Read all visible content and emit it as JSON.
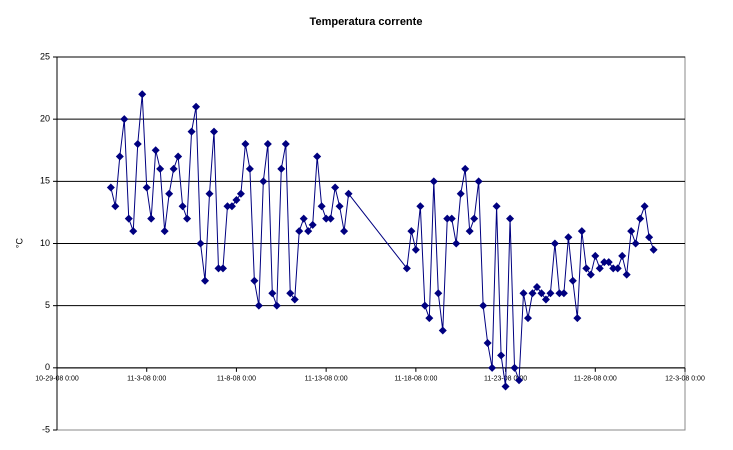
{
  "chart_data": {
    "type": "line",
    "title": "Temperatura corrente",
    "y_label": "°C",
    "color": "#000080",
    "marker": "diamond",
    "grid": true,
    "x": [
      "11-1-08 0:00",
      "11-1-08 6:00",
      "11-1-08 12:00",
      "11-1-08 18:00",
      "11-2-08 0:00",
      "11-2-08 6:00",
      "11-2-08 12:00",
      "11-2-08 18:00",
      "11-3-08 0:00",
      "11-3-08 6:00",
      "11-3-08 12:00",
      "11-3-08 18:00",
      "11-4-08 0:00",
      "11-4-08 6:00",
      "11-4-08 12:00",
      "11-4-08 18:00",
      "11-5-08 0:00",
      "11-5-08 6:00",
      "11-5-08 12:00",
      "11-5-08 18:00",
      "11-6-08 0:00",
      "11-6-08 6:00",
      "11-6-08 12:00",
      "11-6-08 18:00",
      "11-7-08 0:00",
      "11-7-08 6:00",
      "11-7-08 12:00",
      "11-7-08 18:00",
      "11-8-08 0:00",
      "11-8-08 6:00",
      "11-8-08 12:00",
      "11-8-08 18:00",
      "11-9-08 0:00",
      "11-9-08 6:00",
      "11-9-08 12:00",
      "11-9-08 18:00",
      "11-10-08 0:00",
      "11-10-08 6:00",
      "11-10-08 12:00",
      "11-10-08 18:00",
      "11-11-08 0:00",
      "11-11-08 6:00",
      "11-11-08 12:00",
      "11-11-08 18:00",
      "11-12-08 0:00",
      "11-12-08 6:00",
      "11-12-08 12:00",
      "11-12-08 18:00",
      "11-13-08 0:00",
      "11-13-08 6:00",
      "11-13-08 12:00",
      "11-13-08 18:00",
      "11-14-08 0:00",
      "11-14-08 6:00",
      "11-17-08 12:00",
      "11-17-08 18:00",
      "11-18-08 0:00",
      "11-18-08 6:00",
      "11-18-08 12:00",
      "11-18-08 18:00",
      "11-19-08 0:00",
      "11-19-08 6:00",
      "11-19-08 12:00",
      "11-19-08 18:00",
      "11-20-08 0:00",
      "11-20-08 6:00",
      "11-20-08 12:00",
      "11-20-08 18:00",
      "11-21-08 0:00",
      "11-21-08 6:00",
      "11-21-08 12:00",
      "11-21-08 18:00",
      "11-22-08 0:00",
      "11-22-08 6:00",
      "11-22-08 12:00",
      "11-22-08 18:00",
      "11-23-08 0:00",
      "11-23-08 6:00",
      "11-23-08 12:00",
      "11-23-08 18:00",
      "11-24-08 0:00",
      "11-24-08 6:00",
      "11-24-08 12:00",
      "11-24-08 18:00",
      "11-25-08 0:00",
      "11-25-08 6:00",
      "11-25-08 12:00",
      "11-25-08 18:00",
      "11-26-08 0:00",
      "11-26-08 6:00",
      "11-26-08 12:00",
      "11-26-08 18:00",
      "11-27-08 0:00",
      "11-27-08 6:00",
      "11-27-08 12:00",
      "11-27-08 18:00",
      "11-28-08 0:00",
      "11-28-08 6:00",
      "11-28-08 12:00",
      "11-28-08 18:00",
      "11-29-08 0:00",
      "11-29-08 6:00",
      "11-29-08 12:00",
      "11-29-08 18:00",
      "11-30-08 0:00",
      "11-30-08 6:00",
      "11-30-08 12:00",
      "11-30-08 18:00",
      "12-1-08 0:00",
      "12-1-08 6:00"
    ],
    "values": [
      14.5,
      13,
      17,
      20,
      12,
      11,
      18,
      22,
      14.5,
      12,
      17.5,
      16,
      11,
      14,
      16,
      17,
      13,
      12,
      19,
      21,
      10,
      7,
      14,
      19,
      8,
      8,
      13,
      13,
      13.5,
      14,
      18,
      16,
      7,
      5,
      15,
      18,
      6,
      5,
      16,
      18,
      6,
      5.5,
      11,
      12,
      11,
      11.5,
      17,
      13,
      12,
      12,
      14.5,
      13,
      11,
      14,
      8,
      11,
      9.5,
      13,
      5,
      4,
      15,
      6,
      3,
      12,
      12,
      10,
      14,
      16,
      11,
      12,
      15,
      5,
      2,
      0,
      13,
      1,
      -1.5,
      12,
      0,
      -1,
      6,
      4,
      6,
      6.5,
      6,
      5.5,
      6,
      10,
      6,
      6,
      10.5,
      7,
      4,
      11,
      8,
      7.5,
      9,
      8,
      8.5,
      8.5,
      8,
      8,
      9,
      7.5,
      11,
      10,
      12,
      13,
      10.5,
      9.5
    ],
    "xlim": [
      "10-29-08 0:00",
      "12-3-08 0:00"
    ],
    "xticks": [
      "10-29-08 0:00",
      "11-3-08 0:00",
      "11-8-08 0:00",
      "11-13-08 0:00",
      "11-18-08 0:00",
      "11-23-08 0:00",
      "11-28-08 0:00",
      "12-3-08 0:00"
    ],
    "ylim": [
      -5,
      25
    ],
    "yticks": [
      -5,
      0,
      5,
      10,
      15,
      20,
      25
    ]
  }
}
